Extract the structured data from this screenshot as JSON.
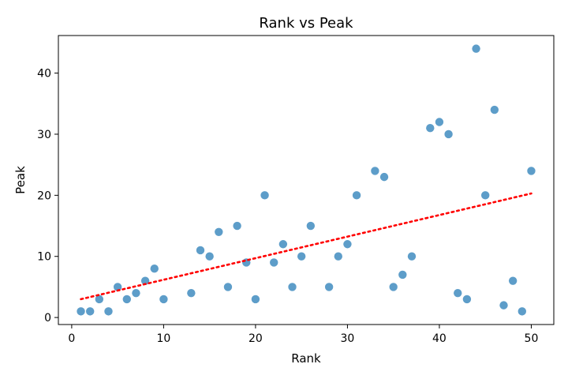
{
  "chart_data": {
    "type": "scatter",
    "title": "Rank vs Peak",
    "xlabel": "Rank",
    "ylabel": "Peak",
    "xlim": [
      -1.45,
      52.45
    ],
    "ylim": [
      -1.15,
      46.15
    ],
    "grid": false,
    "legend": "none",
    "xticks": [
      0,
      10,
      20,
      30,
      40,
      50
    ],
    "yticks": [
      0,
      10,
      20,
      30,
      40
    ],
    "xtick_labels": [
      "0",
      "10",
      "20",
      "30",
      "40",
      "50"
    ],
    "ytick_labels": [
      "0",
      "10",
      "20",
      "30",
      "40"
    ],
    "colors": {
      "points": "#1f77b4",
      "trend": "#ff0000"
    },
    "series": [
      {
        "type": "scatter",
        "x": [
          1,
          2,
          3,
          4,
          5,
          6,
          7,
          8,
          9,
          10,
          13,
          14,
          15,
          16,
          17,
          18,
          19,
          20,
          21,
          22,
          23,
          24,
          25,
          26,
          28,
          29,
          30,
          31,
          33,
          34,
          35,
          36,
          37,
          39,
          40,
          41,
          42,
          43,
          44,
          45,
          46,
          47,
          48,
          49,
          50
        ],
        "y": [
          1,
          1,
          3,
          1,
          5,
          3,
          4,
          6,
          8,
          3,
          4,
          11,
          10,
          14,
          5,
          15,
          9,
          3,
          20,
          9,
          12,
          5,
          10,
          15,
          5,
          10,
          12,
          20,
          24,
          23,
          5,
          7,
          10,
          31,
          32,
          30,
          4,
          3,
          44,
          20,
          34,
          2,
          6,
          1,
          24
        ]
      },
      {
        "type": "line",
        "style": "dotted",
        "x": [
          1,
          50
        ],
        "y": [
          3.0,
          20.3
        ]
      }
    ]
  }
}
